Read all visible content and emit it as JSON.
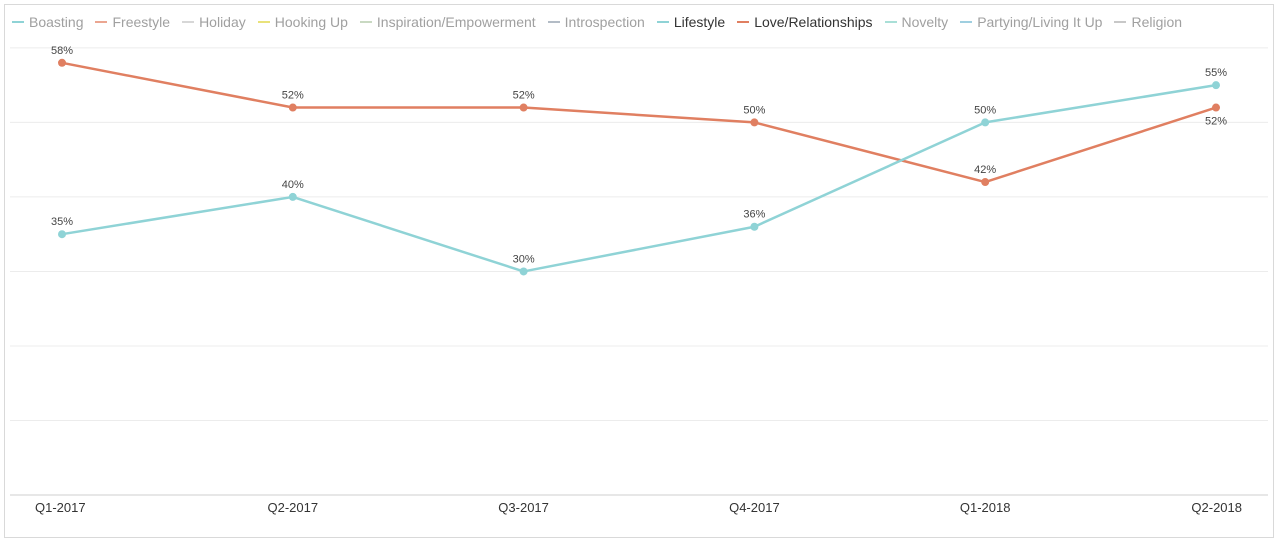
{
  "chart_data": {
    "type": "line",
    "title": "",
    "xlabel": "",
    "ylabel": "",
    "categories": [
      "Q1-2017",
      "Q2-2017",
      "Q3-2017",
      "Q4-2017",
      "Q1-2018",
      "Q2-2018"
    ],
    "ylim": [
      0,
      62
    ],
    "grid": true,
    "legend_position": "top-left",
    "legend": [
      {
        "name": "Boasting",
        "color": "#8fd3d6",
        "active": false
      },
      {
        "name": "Freestyle",
        "color": "#eba691",
        "active": false
      },
      {
        "name": "Holiday",
        "color": "#d7d7d7",
        "active": false
      },
      {
        "name": "Hooking Up",
        "color": "#e9e27a",
        "active": false
      },
      {
        "name": "Inspiration/Empowerment",
        "color": "#c9d9c2",
        "active": false
      },
      {
        "name": "Introspection",
        "color": "#b3bcc6",
        "active": false
      },
      {
        "name": "Lifestyle",
        "color": "#8fd3d6",
        "active": true
      },
      {
        "name": "Love/Relationships",
        "color": "#e07f61",
        "active": true
      },
      {
        "name": "Novelty",
        "color": "#a9dfd7",
        "active": false
      },
      {
        "name": "Partying/Living It Up",
        "color": "#9fcfe0",
        "active": false
      },
      {
        "name": "Religion",
        "color": "#c8c8c8",
        "active": false
      }
    ],
    "series": [
      {
        "name": "Love/Relationships",
        "color": "#e07f61",
        "values": [
          58,
          52,
          52,
          50,
          42,
          52
        ],
        "labels": [
          "58%",
          "52%",
          "52%",
          "50%",
          "42%",
          "52%"
        ]
      },
      {
        "name": "Lifestyle",
        "color": "#8fd3d6",
        "values": [
          35,
          40,
          30,
          36,
          50,
          55
        ],
        "labels": [
          "35%",
          "40%",
          "30%",
          "36%",
          "50%",
          "55%"
        ]
      }
    ]
  }
}
